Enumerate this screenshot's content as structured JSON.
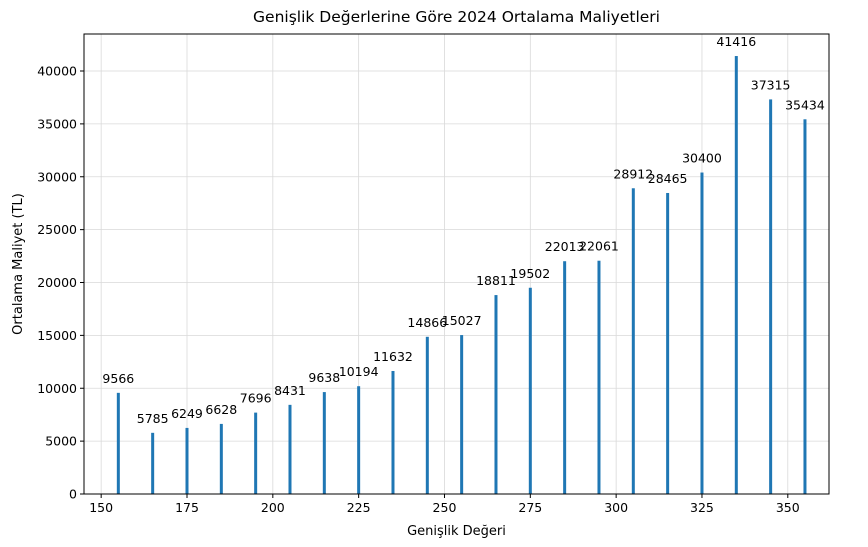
{
  "chart_data": {
    "type": "bar",
    "title": "Genişlik Değerlerine Göre 2024 Ortalama Maliyetleri",
    "xlabel": "Genişlik Değeri",
    "ylabel": "Ortalama Maliyet (TL)",
    "x": [
      155,
      165,
      175,
      185,
      195,
      205,
      215,
      225,
      235,
      245,
      255,
      265,
      275,
      285,
      295,
      305,
      315,
      325,
      335,
      345,
      355
    ],
    "values": [
      9566,
      5785,
      6249,
      6628,
      7696,
      8431,
      9638,
      10194,
      11632,
      14866,
      15027,
      18811,
      19502,
      22013,
      22061,
      28912,
      28465,
      30400,
      41416,
      37315,
      35434
    ],
    "data_labels": [
      "9566",
      "5785",
      "6249",
      "6628",
      "7696",
      "8431",
      "9638",
      "10194",
      "11632",
      "14866",
      "15027",
      "18811",
      "19502",
      "22013",
      "22061",
      "28912",
      "28465",
      "30400",
      "41416",
      "37315",
      "35434"
    ],
    "xlim": [
      145,
      362
    ],
    "ylim": [
      0,
      43500
    ],
    "x_ticks": [
      150,
      175,
      200,
      225,
      250,
      275,
      300,
      325,
      350
    ],
    "x_tick_labels": [
      "150",
      "175",
      "200",
      "225",
      "250",
      "275",
      "300",
      "325",
      "350"
    ],
    "y_ticks": [
      0,
      5000,
      10000,
      15000,
      20000,
      25000,
      30000,
      35000,
      40000
    ],
    "y_tick_labels": [
      "0",
      "5000",
      "10000",
      "15000",
      "20000",
      "25000",
      "30000",
      "35000",
      "40000"
    ],
    "grid": true,
    "bar_color": "#1f77b4"
  }
}
